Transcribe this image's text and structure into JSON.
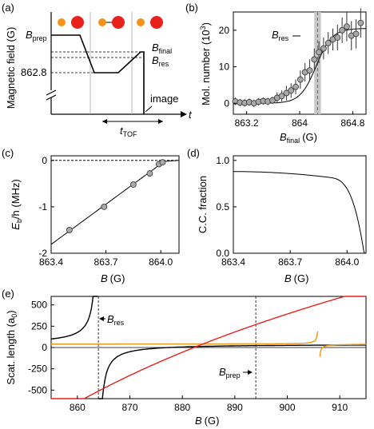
{
  "chart_data": [
    {
      "panel": "(a)",
      "type": "line",
      "ylabel": "Magnetic field (G)",
      "xlabel": "t",
      "field_levels": {
        "B_prep": "B",
        "B_prep_sub": "prep",
        "B_final": "B",
        "B_final_sub": "final",
        "B_res": "B",
        "B_res_sub": "res",
        "value_label": "862.8"
      },
      "annotations": {
        "image": "image",
        "tof": "t",
        "tof_sub": "TOF"
      },
      "sequence": [
        {
          "t": 0,
          "B": "prep"
        },
        {
          "t": 1.2,
          "B": "prep"
        },
        {
          "t": 1.6,
          "B": 862.8
        },
        {
          "t": 2.6,
          "B": 862.8
        },
        {
          "t": 3.0,
          "B": "final"
        },
        {
          "t": 3.0,
          "B": 0
        }
      ]
    },
    {
      "panel": "(b)",
      "type": "scatter",
      "xlabel": "B",
      "xlabel_sub": "final",
      "xlabel_unit": "(G)",
      "ylabel": "Mol. number (10",
      "ylabel_sup": "3",
      "ylabel_end": ")",
      "annotation": "B",
      "annotation_sub": "res",
      "xlim": [
        863.0,
        865.0
      ],
      "ylim": [
        -3,
        25
      ],
      "xticks": [
        "863.2",
        "864",
        "864.8"
      ],
      "yticks": [
        "0",
        "10",
        "20"
      ],
      "B_res": 864.27,
      "B_res_band": [
        864.22,
        864.32
      ],
      "points": {
        "x": [
          863.03,
          863.1,
          863.17,
          863.24,
          863.31,
          863.38,
          863.45,
          863.52,
          863.59,
          863.66,
          863.73,
          863.8,
          863.87,
          863.94,
          864.01,
          864.08,
          864.15,
          864.22,
          864.29,
          864.36,
          864.43,
          864.5,
          864.57,
          864.64,
          864.71,
          864.78,
          864.85,
          864.92
        ],
        "y": [
          0.5,
          0.2,
          0.1,
          0.3,
          0.0,
          0.4,
          0.6,
          0.5,
          0.8,
          1.5,
          2.0,
          2.8,
          3.5,
          4.5,
          6.5,
          8.5,
          9.0,
          12.0,
          14.0,
          15.0,
          16.5,
          17.5,
          18.0,
          20.0,
          21.0,
          18.5,
          19.0,
          22.0
        ],
        "err": [
          1.0,
          1.0,
          1.0,
          1.0,
          1.0,
          1.0,
          1.0,
          1.0,
          1.0,
          1.5,
          1.5,
          2.0,
          2.0,
          2.0,
          2.5,
          2.5,
          3.0,
          3.0,
          3.0,
          3.0,
          3.0,
          3.0,
          3.5,
          3.5,
          4.0,
          4.0,
          4.0,
          4.0
        ]
      }
    },
    {
      "panel": "(c)",
      "type": "scatter",
      "xlabel": "B",
      "xlabel_unit": "(G)",
      "ylabel": "E",
      "ylabel_sub": "b",
      "ylabel_end": "/h (MHz)",
      "xlim": [
        863.4,
        864.1
      ],
      "ylim": [
        -2.0,
        0.1
      ],
      "xticks": [
        "863.4",
        "863.7",
        "864.0"
      ],
      "yticks": [
        "0",
        "-1",
        "-2"
      ],
      "points": {
        "x": [
          863.5,
          863.69,
          863.85,
          863.94,
          863.99,
          864.01
        ],
        "y": [
          -1.5,
          -1.0,
          -0.52,
          -0.28,
          -0.08,
          -0.04
        ]
      }
    },
    {
      "panel": "(d)",
      "type": "line",
      "xlabel": "B",
      "xlabel_unit": "(G)",
      "ylabel": "C.C. fraction",
      "xlim": [
        863.4,
        864.1
      ],
      "ylim": [
        0.0,
        1.05
      ],
      "xticks": [
        "863.4",
        "863.7",
        "864.0"
      ],
      "yticks": [
        "0.0",
        "0.5",
        "1.0"
      ]
    },
    {
      "panel": "(e)",
      "type": "line",
      "xlabel": "B",
      "xlabel_unit": "(G)",
      "ylabel": "Scat. length (a",
      "ylabel_sub": "0",
      "ylabel_end": ")",
      "xlim": [
        855,
        915
      ],
      "ylim": [
        -600,
        600
      ],
      "xticks": [
        "860",
        "870",
        "880",
        "890",
        "900",
        "910"
      ],
      "yticks": [
        "-500",
        "-250",
        "0",
        "250",
        "500"
      ],
      "annotations": [
        {
          "text": "B",
          "sub": "res",
          "at": 864.0
        },
        {
          "text": "B",
          "sub": "prep",
          "at": 894.0
        }
      ],
      "series_colors": {
        "black": "#000000",
        "red": "#e8211b",
        "orange": "#f39416"
      }
    }
  ],
  "panel_labels": [
    "(a)",
    "(b)",
    "(c)",
    "(d)",
    "(e)"
  ],
  "colors": {
    "atom_red": "#e8211b",
    "atom_orange": "#f39416",
    "band": "#c8c8c8",
    "marker": "#a9a9a9"
  }
}
